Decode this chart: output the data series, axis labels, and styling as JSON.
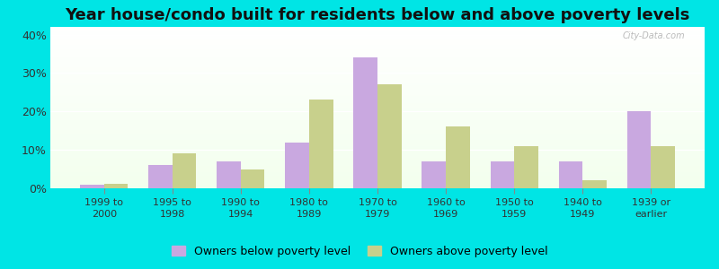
{
  "title": "Year house/condo built for residents below and above poverty levels",
  "categories": [
    "1999 to\n2000",
    "1995 to\n1998",
    "1990 to\n1994",
    "1980 to\n1989",
    "1970 to\n1979",
    "1960 to\n1969",
    "1950 to\n1959",
    "1940 to\n1949",
    "1939 or\nearlier"
  ],
  "below_poverty": [
    1.0,
    6.0,
    7.0,
    12.0,
    34.0,
    7.0,
    7.0,
    7.0,
    20.0
  ],
  "above_poverty": [
    1.2,
    9.0,
    5.0,
    23.0,
    27.0,
    16.0,
    11.0,
    2.0,
    11.0
  ],
  "below_color": "#c9a8e0",
  "above_color": "#c8d08c",
  "background_color": "#00e5e5",
  "yticks": [
    0,
    10,
    20,
    30,
    40
  ],
  "ylim": [
    0,
    42
  ],
  "legend_below": "Owners below poverty level",
  "legend_above": "Owners above poverty level",
  "title_fontsize": 13,
  "bar_width": 0.35
}
